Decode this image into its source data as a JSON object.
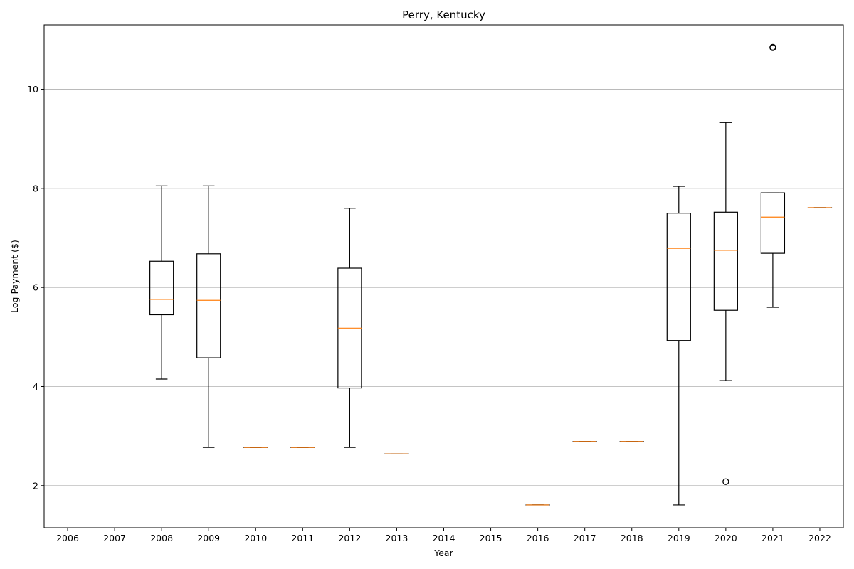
{
  "chart_data": {
    "type": "boxplot",
    "title": "Perry, Kentucky",
    "xlabel": "Year",
    "ylabel": "Log Payment ($)",
    "categories": [
      "2006",
      "2007",
      "2008",
      "2009",
      "2010",
      "2011",
      "2012",
      "2013",
      "2014",
      "2015",
      "2016",
      "2017",
      "2018",
      "2019",
      "2020",
      "2021",
      "2022"
    ],
    "ylim": [
      1.15,
      11.3
    ],
    "yticks": [
      2,
      4,
      6,
      8,
      10
    ],
    "grid": "y",
    "boxes": [
      {
        "category": "2008",
        "whislo": 4.15,
        "q1": 5.45,
        "median": 5.76,
        "q3": 6.53,
        "whishi": 8.05,
        "fliers": []
      },
      {
        "category": "2009",
        "whislo": 2.77,
        "q1": 4.58,
        "median": 5.74,
        "q3": 6.68,
        "whishi": 8.05,
        "fliers": []
      },
      {
        "category": "2010",
        "whislo": 2.77,
        "q1": 2.77,
        "median": 2.77,
        "q3": 2.77,
        "whishi": 2.77,
        "fliers": []
      },
      {
        "category": "2011",
        "whislo": 2.77,
        "q1": 2.77,
        "median": 2.77,
        "q3": 2.77,
        "whishi": 2.77,
        "fliers": []
      },
      {
        "category": "2012",
        "whislo": 2.77,
        "q1": 3.97,
        "median": 5.18,
        "q3": 6.39,
        "whishi": 7.6,
        "fliers": []
      },
      {
        "category": "2013",
        "whislo": 2.64,
        "q1": 2.64,
        "median": 2.64,
        "q3": 2.64,
        "whishi": 2.64,
        "fliers": []
      },
      {
        "category": "2016",
        "whislo": 1.61,
        "q1": 1.61,
        "median": 1.61,
        "q3": 1.61,
        "whishi": 1.61,
        "fliers": []
      },
      {
        "category": "2017",
        "whislo": 2.89,
        "q1": 2.89,
        "median": 2.89,
        "q3": 2.89,
        "whishi": 2.89,
        "fliers": []
      },
      {
        "category": "2018",
        "whislo": 2.89,
        "q1": 2.89,
        "median": 2.89,
        "q3": 2.89,
        "whishi": 2.89,
        "fliers": []
      },
      {
        "category": "2019",
        "whislo": 1.61,
        "q1": 4.93,
        "median": 6.79,
        "q3": 7.5,
        "whishi": 8.04,
        "fliers": []
      },
      {
        "category": "2020",
        "whislo": 4.12,
        "q1": 5.54,
        "median": 6.75,
        "q3": 7.52,
        "whishi": 9.33,
        "fliers": [
          2.08
        ]
      },
      {
        "category": "2021",
        "whislo": 5.6,
        "q1": 6.69,
        "median": 7.42,
        "q3": 7.91,
        "whishi": 7.91,
        "fliers": [
          10.84,
          10.85
        ]
      },
      {
        "category": "2022",
        "whislo": 7.61,
        "q1": 7.61,
        "median": 7.61,
        "q3": 7.61,
        "whishi": 7.61,
        "fliers": []
      }
    ]
  }
}
